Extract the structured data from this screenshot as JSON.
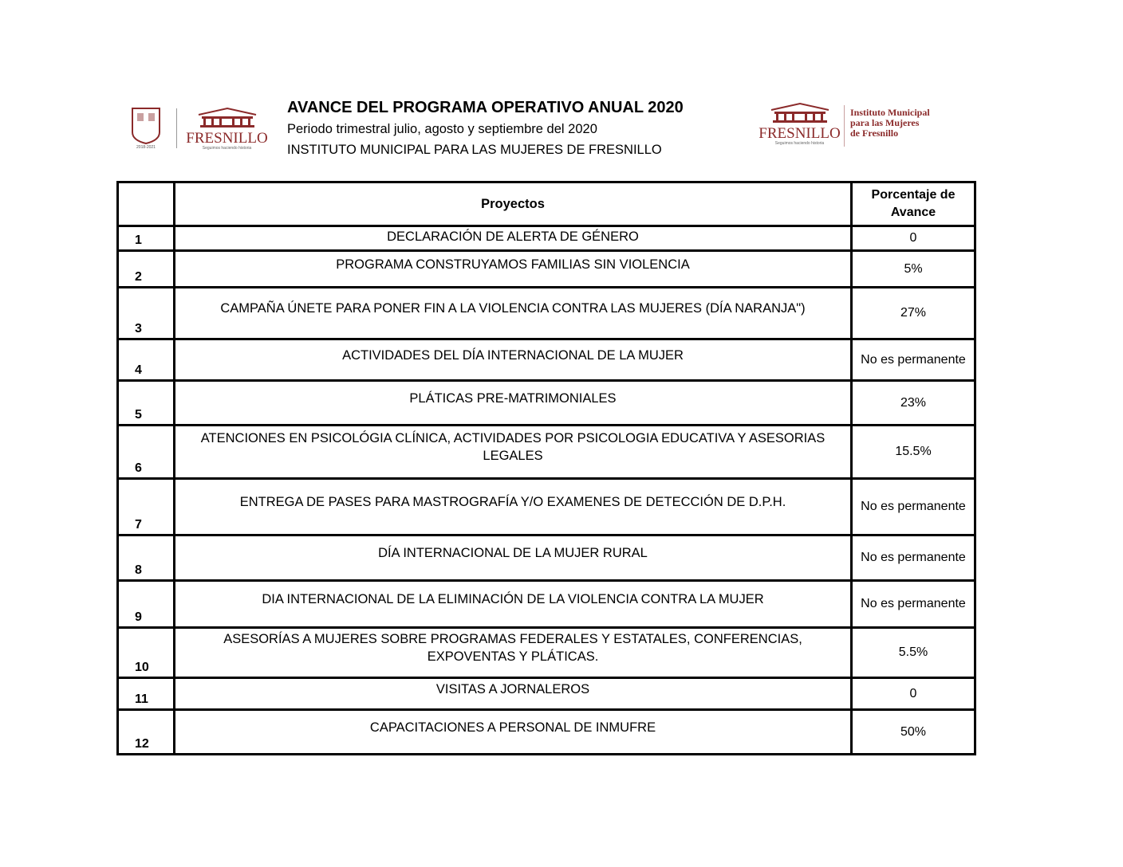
{
  "header": {
    "title": "AVANCE DEL PROGRAMA OPERATIVO ANUAL 2020",
    "period": "Periodo trimestral julio, agosto y septiembre del 2020",
    "institution": "INSTITUTO MUNICIPAL PARA LAS MUJERES DE FRESNILLO"
  },
  "logos": {
    "left_text": "FRESNILLO",
    "left_tagline": "Seguimos haciendo historia",
    "left_seal": "Ayuntamiento 2018-2021",
    "right_text": "FRESNILLO",
    "right_tagline": "Seguimos haciendo historia",
    "right_name": [
      "Instituto Municipal",
      "para las Mujeres",
      "de Fresnillo"
    ],
    "brand_color": "#8b2a2a"
  },
  "table": {
    "headers": [
      "",
      "Proyectos",
      "Porcentaje de Avance"
    ],
    "rows": [
      {
        "n": "1",
        "p": "DECLARACIÓN DE ALERTA DE GÉNERO",
        "v": "0"
      },
      {
        "n": "2",
        "p": "PROGRAMA CONSTRUYAMOS FAMILIAS SIN VIOLENCIA",
        "v": "5%"
      },
      {
        "n": "3",
        "p": "CAMPAÑA ÚNETE PARA PONER FIN A LA VIOLENCIA CONTRA LAS MUJERES (DÍA NARANJA\")",
        "v": "27%"
      },
      {
        "n": "4",
        "p": "ACTIVIDADES DEL DÍA INTERNACIONAL DE LA MUJER",
        "v": "No es permanente"
      },
      {
        "n": "5",
        "p": "PLÁTICAS PRE-MATRIMONIALES",
        "v": "23%"
      },
      {
        "n": "6",
        "p": "ATENCIONES EN PSICOLÓGIA CLÍNICA, ACTIVIDADES POR PSICOLOGIA EDUCATIVA Y ASESORIAS LEGALES",
        "v": "15.5%"
      },
      {
        "n": "7",
        "p": "ENTREGA DE PASES PARA MASTROGRAFÍA Y/O EXAMENES DE DETECCIÓN DE D.P.H.",
        "v": "No es permanente"
      },
      {
        "n": "8",
        "p": "DÍA INTERNACIONAL DE LA MUJER RURAL",
        "v": "No es permanente"
      },
      {
        "n": "9",
        "p": "DIA INTERNACIONAL DE LA ELIMINACIÓN DE LA VIOLENCIA CONTRA LA MUJER",
        "v": "No es permanente"
      },
      {
        "n": "10",
        "p": "ASESORÍAS A MUJERES SOBRE PROGRAMAS FEDERALES Y ESTATALES, CONFERENCIAS, EXPOVENTAS Y PLÁTICAS.",
        "v": "5.5%"
      },
      {
        "n": "11",
        "p": "VISITAS A JORNALEROS",
        "v": "0"
      },
      {
        "n": "12",
        "p": "CAPACITACIONES A PERSONAL DE INMUFRE",
        "v": "50%"
      }
    ]
  }
}
